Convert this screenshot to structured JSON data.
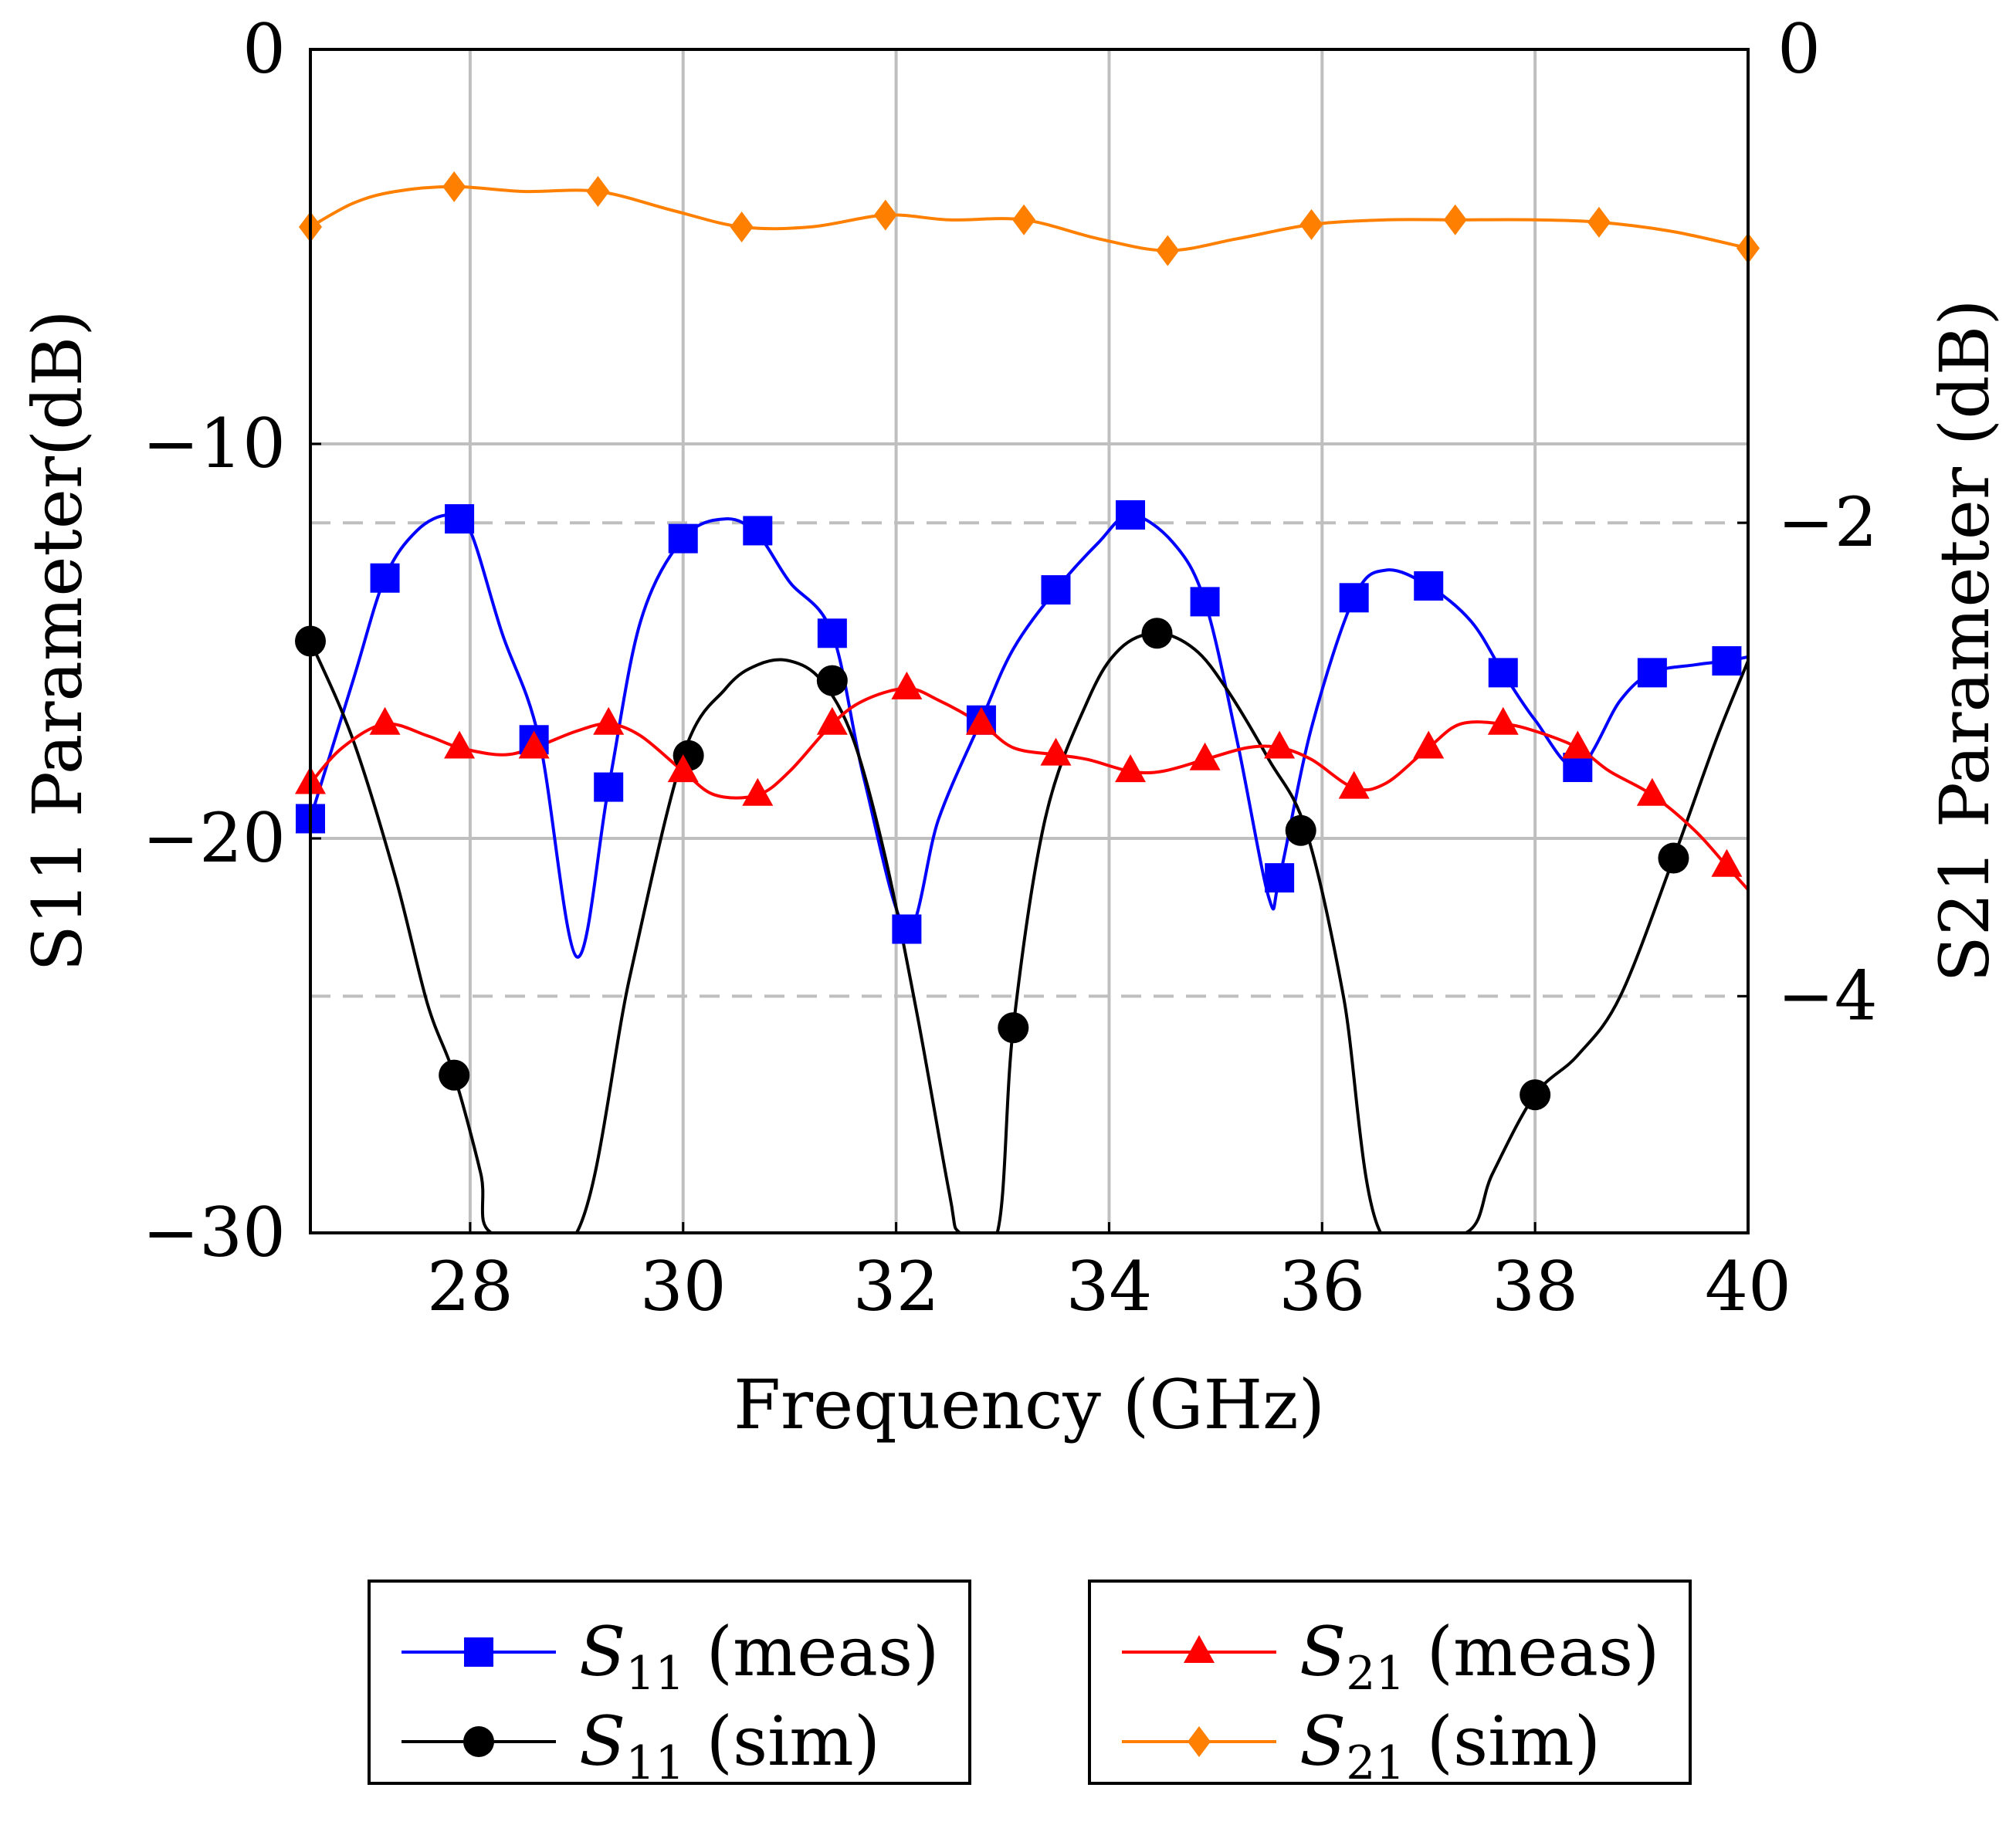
{
  "chart_data": {
    "type": "line",
    "xlabel": "Frequency (GHz)",
    "ylabel_left": "S11 Parameter(dB)",
    "ylabel_right": "S21 Parameter (dB)",
    "xlim": [
      26.5,
      40
    ],
    "ylim_left": [
      -30,
      0
    ],
    "ylim_right": [
      -5,
      0
    ],
    "x_ticks": [
      28,
      30,
      32,
      34,
      36,
      38,
      40
    ],
    "x_tick_labels": [
      "28",
      "30",
      "32",
      "34",
      "36",
      "38",
      "40"
    ],
    "y_left_ticks": [
      0,
      -10,
      -20,
      -30
    ],
    "y_left_tick_labels": [
      "0",
      "−10",
      "−20",
      "−30"
    ],
    "y_right_ticks": [
      0,
      -2,
      -4
    ],
    "y_right_tick_labels": [
      "0",
      "−2",
      "−4"
    ],
    "grid": true,
    "legend_placement": "bottom, two boxes",
    "series": [
      {
        "name": "S11 (meas)",
        "legend_base": "S",
        "legend_sub": "11",
        "legend_suffix": " (meas)",
        "axis": "left",
        "color": "#0000ff",
        "marker": "square",
        "x": [
          26.5,
          26.9,
          27.2,
          27.5,
          27.8,
          28.0,
          28.3,
          28.65,
          29.0,
          29.3,
          29.6,
          30.0,
          30.4,
          30.7,
          31.0,
          31.4,
          31.7,
          32.1,
          32.4,
          32.8,
          33.1,
          33.5,
          33.9,
          34.2,
          34.6,
          34.9,
          35.2,
          35.5,
          35.6,
          35.9,
          36.3,
          36.6,
          37.0,
          37.4,
          37.7,
          38.0,
          38.4,
          38.8,
          39.1,
          39.5,
          39.8,
          40.0
        ],
        "y": [
          -19.5,
          -16.0,
          -13.4,
          -12.2,
          -11.8,
          -12.2,
          -14.8,
          -17.5,
          -23.0,
          -18.7,
          -14.5,
          -12.4,
          -11.9,
          -12.3,
          -13.5,
          -14.8,
          -18.5,
          -22.3,
          -19.5,
          -17.0,
          -15.2,
          -13.7,
          -12.5,
          -11.8,
          -12.5,
          -14.0,
          -17.5,
          -21.5,
          -21.0,
          -17.2,
          -13.9,
          -13.2,
          -13.6,
          -14.5,
          -15.8,
          -17.0,
          -18.2,
          -16.5,
          -15.8,
          -15.6,
          -15.5,
          -15.4
        ],
        "marker_x": [
          26.5,
          27.2,
          27.9,
          28.6,
          29.3,
          30.0,
          30.7,
          31.4,
          32.1,
          32.8,
          33.5,
          34.2,
          34.9,
          35.6,
          36.3,
          37.0,
          37.7,
          38.4,
          39.1,
          39.8
        ],
        "marker_y": [
          -19.5,
          -13.4,
          -11.9,
          -17.5,
          -18.7,
          -12.4,
          -12.2,
          -14.8,
          -22.3,
          -17.0,
          -13.7,
          -11.8,
          -14.0,
          -21.0,
          -13.9,
          -13.6,
          -15.8,
          -18.2,
          -15.8,
          -15.5
        ]
      },
      {
        "name": "S11 (sim)",
        "legend_base": "S",
        "legend_sub": "11",
        "legend_suffix": " (sim)",
        "axis": "left",
        "color": "#000000",
        "marker": "circle",
        "x": [
          26.5,
          26.9,
          27.3,
          27.6,
          27.85,
          28.1,
          28.2,
          29.0,
          29.5,
          30.0,
          30.4,
          30.7,
          31.0,
          31.3,
          31.6,
          31.9,
          32.2,
          32.5,
          32.6,
          32.95,
          33.1,
          33.4,
          33.8,
          34.1,
          34.45,
          34.8,
          35.1,
          35.5,
          35.85,
          36.2,
          36.55,
          37.35,
          37.6,
          38.0,
          38.4,
          38.8,
          39.3,
          39.7,
          40.0
        ],
        "y": [
          -15.0,
          -17.5,
          -21.0,
          -24.2,
          -26.0,
          -28.5,
          -30.0,
          -30.0,
          -23.5,
          -17.9,
          -16.2,
          -15.6,
          -15.5,
          -16.0,
          -17.5,
          -20.5,
          -24.5,
          -29.0,
          -30.0,
          -30.0,
          -24.8,
          -19.5,
          -16.5,
          -15.2,
          -14.8,
          -15.2,
          -16.2,
          -18.0,
          -19.8,
          -24.0,
          -30.0,
          -30.0,
          -28.5,
          -26.5,
          -25.5,
          -24.0,
          -20.5,
          -17.5,
          -15.5
        ],
        "marker_x": [
          26.5,
          27.85,
          30.05,
          31.4,
          33.1,
          34.45,
          35.8,
          38.0,
          39.3
        ],
        "marker_y": [
          -15.0,
          -26.0,
          -17.9,
          -16.0,
          -24.8,
          -14.8,
          -19.8,
          -26.5,
          -20.5
        ]
      },
      {
        "name": "S21 (meas)",
        "legend_base": "S",
        "legend_sub": "21",
        "legend_suffix": " (meas)",
        "axis": "right",
        "color": "#ff0000",
        "marker": "triangle",
        "x": [
          26.5,
          26.8,
          27.2,
          27.6,
          27.9,
          28.3,
          28.6,
          29.0,
          29.3,
          29.6,
          30.0,
          30.3,
          30.7,
          31.0,
          31.4,
          31.7,
          32.1,
          32.4,
          32.8,
          33.1,
          33.5,
          33.8,
          34.2,
          34.5,
          34.9,
          35.3,
          35.6,
          35.9,
          36.3,
          36.6,
          37.0,
          37.3,
          37.7,
          38.0,
          38.4,
          38.7,
          39.1,
          39.5,
          39.8,
          40.0
        ],
        "y": [
          -3.1,
          -2.95,
          -2.85,
          -2.9,
          -2.95,
          -2.98,
          -2.95,
          -2.88,
          -2.85,
          -2.9,
          -3.05,
          -3.15,
          -3.15,
          -3.05,
          -2.85,
          -2.75,
          -2.7,
          -2.75,
          -2.85,
          -2.95,
          -2.98,
          -3.0,
          -3.05,
          -3.05,
          -3.0,
          -2.95,
          -2.95,
          -3.0,
          -3.12,
          -3.1,
          -2.95,
          -2.85,
          -2.85,
          -2.88,
          -2.95,
          -3.05,
          -3.15,
          -3.3,
          -3.45,
          -3.55
        ],
        "marker_x": [
          26.5,
          27.2,
          27.9,
          28.6,
          29.3,
          30.0,
          30.7,
          31.4,
          32.1,
          32.8,
          33.5,
          34.2,
          34.9,
          35.6,
          36.3,
          37.0,
          37.7,
          38.4,
          39.1,
          39.8
        ],
        "marker_y": [
          -3.1,
          -2.85,
          -2.95,
          -2.95,
          -2.85,
          -3.05,
          -3.15,
          -2.85,
          -2.7,
          -2.85,
          -2.98,
          -3.05,
          -3.0,
          -2.95,
          -3.12,
          -2.95,
          -2.85,
          -2.95,
          -3.15,
          -3.45
        ]
      },
      {
        "name": "S21 (sim)",
        "legend_base": "S",
        "legend_sub": "21",
        "legend_suffix": " (sim)",
        "axis": "right",
        "color": "#ff8000",
        "marker": "diamond",
        "x": [
          26.5,
          26.9,
          27.3,
          27.85,
          28.5,
          29.2,
          29.9,
          30.55,
          31.2,
          31.9,
          32.5,
          33.2,
          33.9,
          34.55,
          35.2,
          35.9,
          36.6,
          37.25,
          38.0,
          38.6,
          39.3,
          40.0
        ],
        "y": [
          -0.75,
          -0.65,
          -0.6,
          -0.58,
          -0.6,
          -0.6,
          -0.68,
          -0.75,
          -0.75,
          -0.7,
          -0.72,
          -0.72,
          -0.8,
          -0.85,
          -0.8,
          -0.74,
          -0.72,
          -0.72,
          -0.72,
          -0.73,
          -0.77,
          -0.84
        ],
        "marker_x": [
          26.5,
          27.85,
          29.2,
          30.55,
          31.9,
          33.2,
          34.55,
          35.9,
          37.25,
          38.6,
          40.0
        ],
        "marker_y": [
          -0.75,
          -0.58,
          -0.6,
          -0.75,
          -0.7,
          -0.72,
          -0.85,
          -0.74,
          -0.72,
          -0.73,
          -0.84
        ]
      }
    ]
  }
}
